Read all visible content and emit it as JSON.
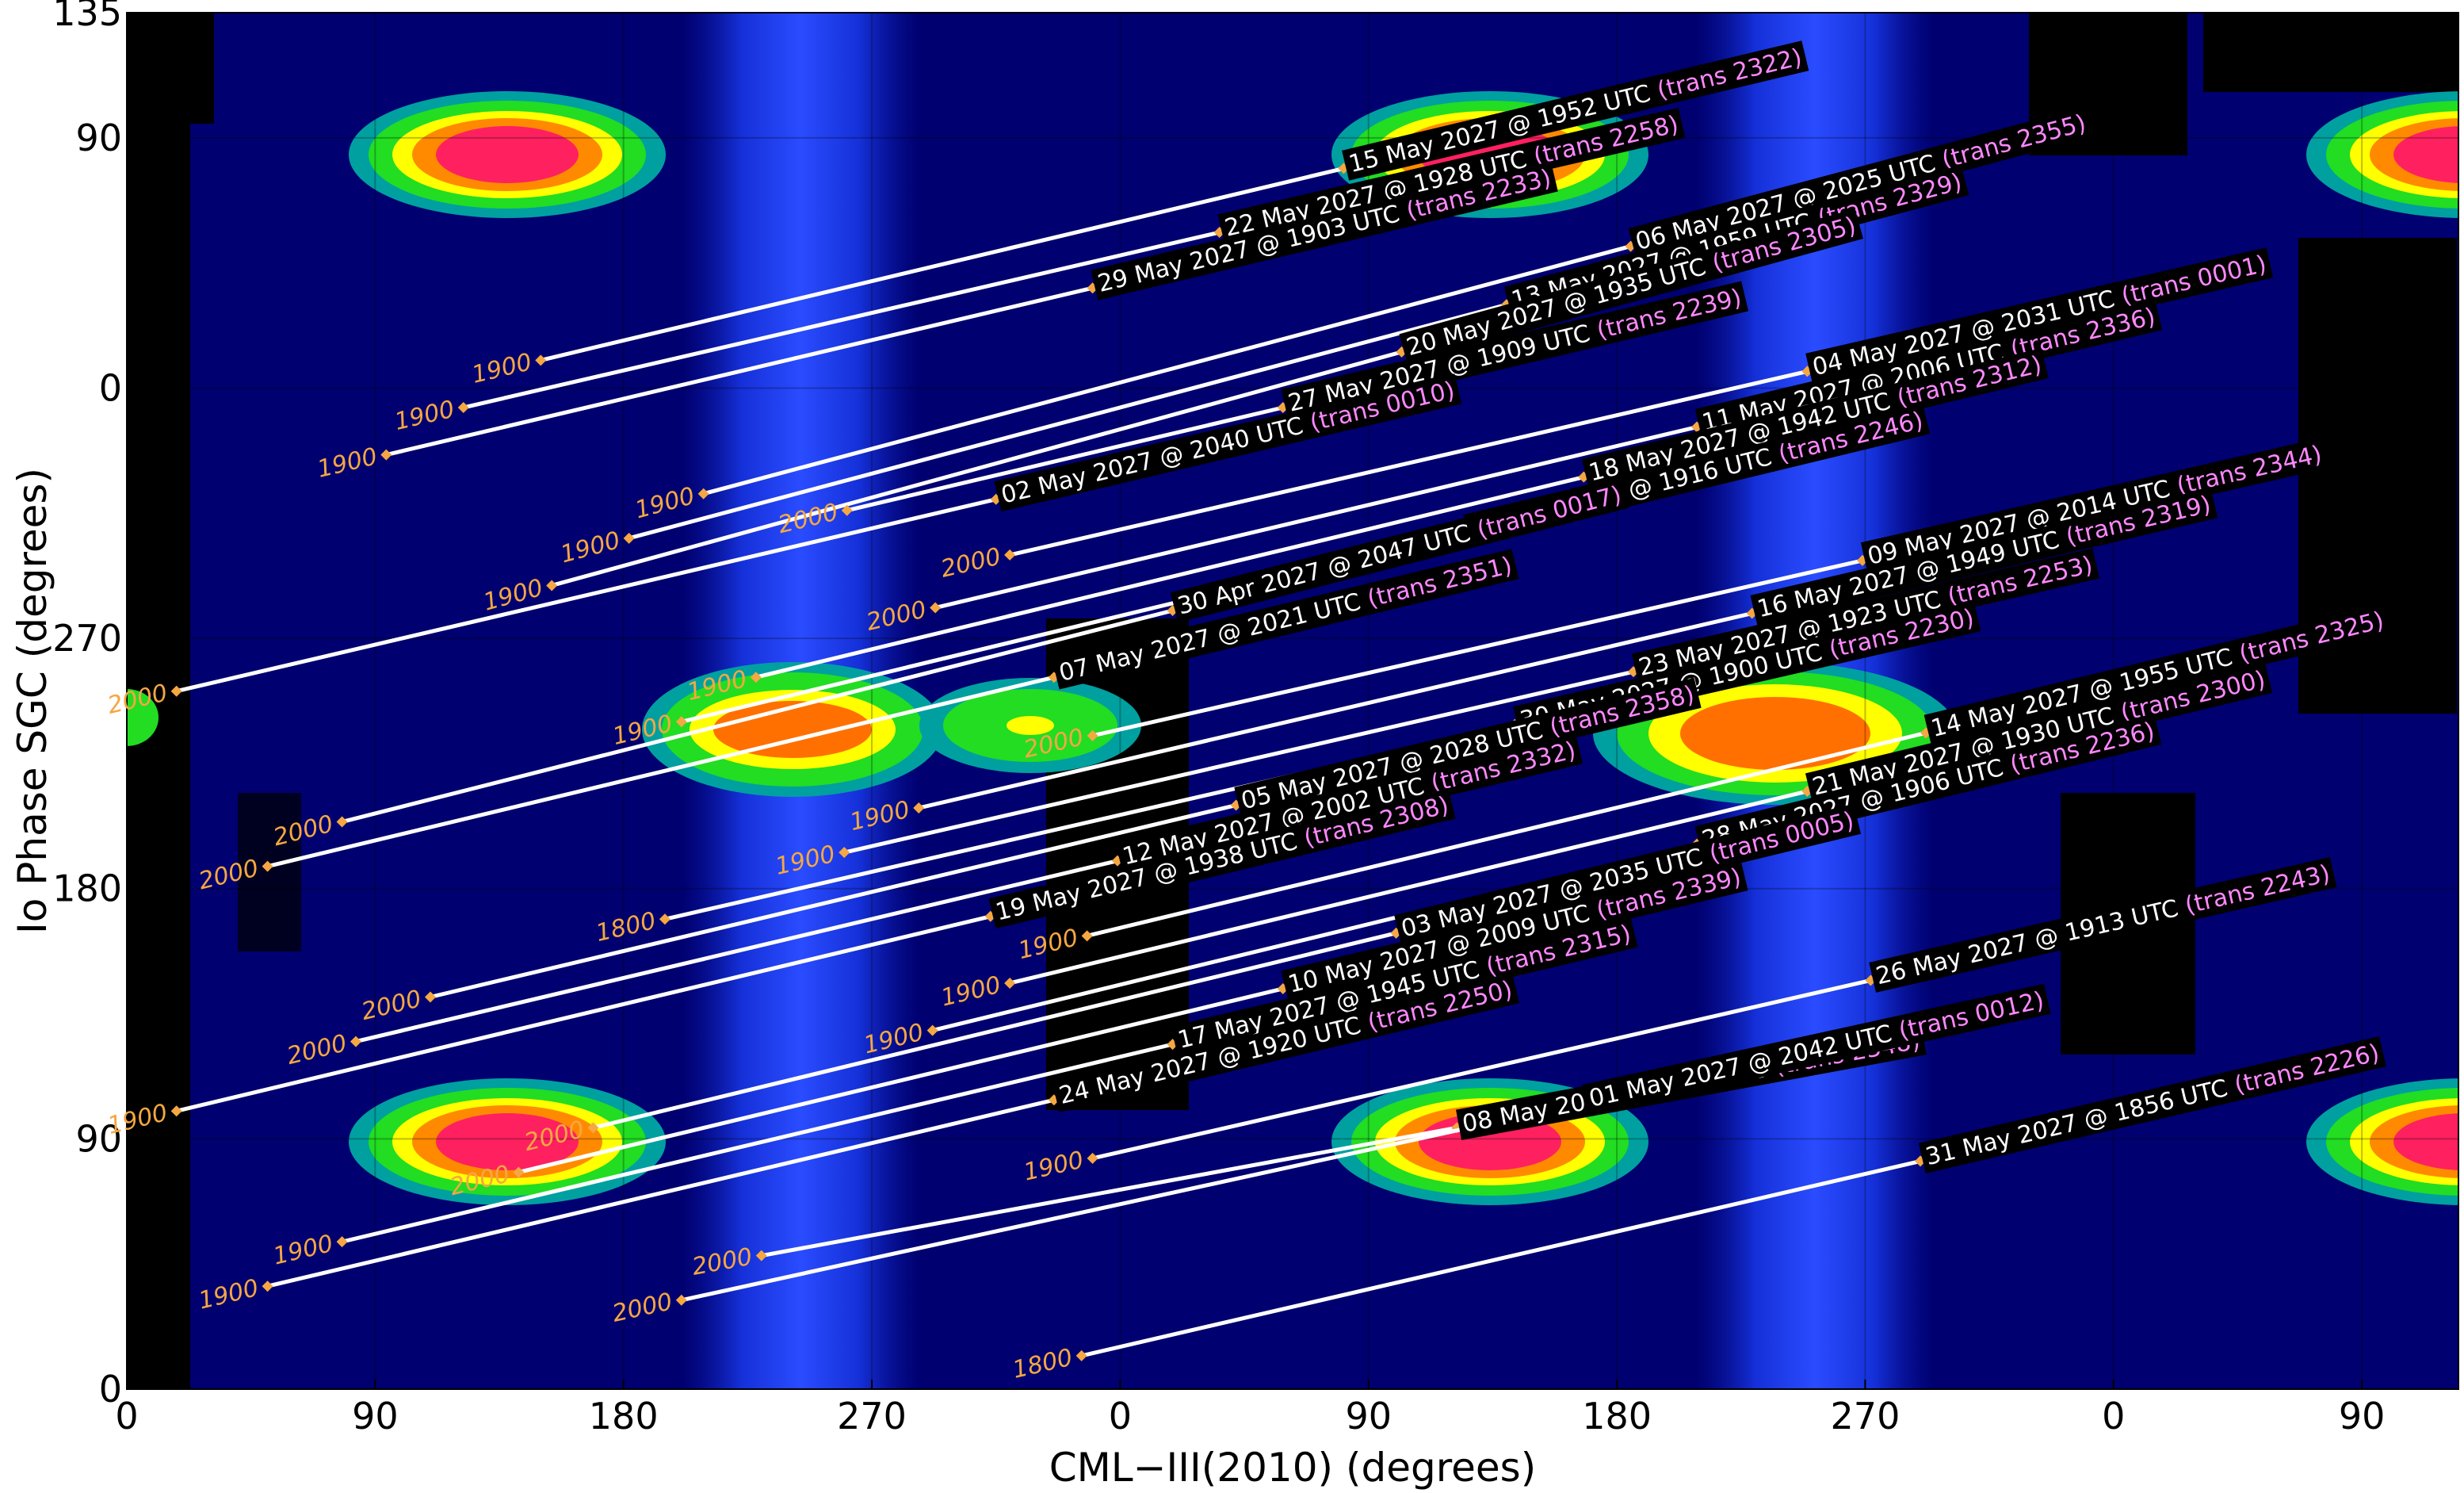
{
  "chart_data": {
    "type": "line",
    "x_label": "CML−III(2010) (degrees)",
    "y_label": "Io Phase SGC (degrees)",
    "xlim": [
      0,
      845
    ],
    "ylim": [
      0,
      495
    ],
    "xticks": [
      0,
      90,
      180,
      270,
      {
        "value": 360,
        "label": "0"
      },
      {
        "value": 450,
        "label": "90"
      },
      {
        "value": 540,
        "label": "180"
      },
      {
        "value": 630,
        "label": "270"
      },
      {
        "value": 720,
        "label": "0"
      },
      {
        "value": 810,
        "label": "90"
      }
    ],
    "yticks": [
      0,
      90,
      180,
      270,
      {
        "value": 360,
        "label": "0"
      },
      {
        "value": 450,
        "label": "90"
      },
      {
        "value": 495,
        "label": "135"
      }
    ],
    "grid": true,
    "line_color": "#ffffff",
    "start_color": "#f5a742",
    "trans_color": "#ff88ff",
    "series": [
      {
        "name": "15 May 2027 @ 1952 UTC",
        "trans": "(trans 2322)",
        "start_label": "1900",
        "x": [
          150,
          441
        ],
        "y": [
          370,
          439
        ]
      },
      {
        "name": "22 May 2027 @ 1928 UTC",
        "trans": "(trans 2258)",
        "start_label": "1900",
        "x": [
          122,
          396
        ],
        "y": [
          353,
          416
        ]
      },
      {
        "name": "29 May 2027 @ 1903 UTC",
        "trans": "(trans 2233)",
        "start_label": "1900",
        "x": [
          94,
          350
        ],
        "y": [
          336,
          396
        ]
      },
      {
        "name": "06 May 2027 @ 2025 UTC",
        "trans": "(trans 2355)",
        "start_label": "1900",
        "x": [
          209,
          545
        ],
        "y": [
          322,
          411
        ]
      },
      {
        "name": "13 May 2027 @ 1959 UTC",
        "trans": "(trans 2329)",
        "start_label": "1900",
        "x": [
          182,
          500
        ],
        "y": [
          306,
          390
        ]
      },
      {
        "name": "20 May 2027 @ 1935 UTC",
        "trans": "(trans 2305)",
        "start_label": "1900",
        "x": [
          154,
          462
        ],
        "y": [
          289,
          373
        ]
      },
      {
        "name": "27 May 2027 @ 1909 UTC",
        "trans": "(trans 2239)",
        "start_label": "2000",
        "x": [
          261,
          419
        ],
        "y": [
          316,
          353
        ]
      },
      {
        "name": "02 May 2027 @ 2040 UTC",
        "trans": "(trans 0010)",
        "start_label": "2000",
        "x": [
          18,
          315
        ],
        "y": [
          251,
          320
        ]
      },
      {
        "name": "04 May 2027 @ 2031 UTC",
        "trans": "(trans 0001)",
        "start_label": "2000",
        "x": [
          320,
          609
        ],
        "y": [
          300,
          366
        ]
      },
      {
        "name": "11 May 2027 @ 2006 UTC",
        "trans": "(trans 2336)",
        "start_label": "2000",
        "x": [
          293,
          569
        ],
        "y": [
          281,
          346
        ]
      },
      {
        "name": "18 May 2027 @ 1942 UTC",
        "trans": "(trans 2312)",
        "start_label": "1900",
        "x": [
          228,
          528
        ],
        "y": [
          256,
          328
        ]
      },
      {
        "name": "25 May 2027 @ 1916 UTC",
        "trans": "(trans 2246)",
        "start_label": "1900",
        "x": [
          201,
          485
        ],
        "y": [
          240,
          308
        ]
      },
      {
        "name": "30 Apr 2027 @ 2047 UTC",
        "trans": "(trans 0017)",
        "start_label": "2000",
        "x": [
          78,
          379
        ],
        "y": [
          204,
          280
        ]
      },
      {
        "name": "07 May 2027 @ 2021 UTC",
        "trans": "(trans 2351)",
        "start_label": "2000",
        "x": [
          51,
          336
        ],
        "y": [
          188,
          256
        ]
      },
      {
        "name": "09 May 2027 @ 2014 UTC",
        "trans": "(trans 2344)",
        "start_label": "2000",
        "x": [
          350,
          629
        ],
        "y": [
          235,
          298
        ]
      },
      {
        "name": "16 May 2027 @ 1949 UTC",
        "trans": "(trans 2319)",
        "start_label": "1900",
        "x": [
          287,
          589
        ],
        "y": [
          209,
          279
        ]
      },
      {
        "name": "23 May 2027 @ 1923 UTC",
        "trans": "(trans 2253)",
        "start_label": "1900",
        "x": [
          260,
          546
        ],
        "y": [
          193,
          258
        ]
      },
      {
        "name": "30 May 2027 @ 1900 UTC",
        "trans": "(trans 2230)",
        "start_label": "1800",
        "x": [
          195,
          503
        ],
        "y": [
          169,
          239
        ]
      },
      {
        "name": "05 May 2027 @ 2028 UTC",
        "trans": "(trans 2358)",
        "start_label": "2000",
        "x": [
          110,
          402
        ],
        "y": [
          141,
          210
        ]
      },
      {
        "name": "12 May 2027 @ 2002 UTC",
        "trans": "(trans 2332)",
        "start_label": "2000",
        "x": [
          83,
          359
        ],
        "y": [
          125,
          190
        ]
      },
      {
        "name": "19 May 2027 @ 1938 UTC",
        "trans": "(trans 2308)",
        "start_label": "1900",
        "x": [
          18,
          313
        ],
        "y": [
          100,
          170
        ]
      },
      {
        "name": "14 May 2027 @ 1955 UTC",
        "trans": "(trans 2325)",
        "start_label": "1900",
        "x": [
          348,
          652
        ],
        "y": [
          163,
          236
        ]
      },
      {
        "name": "21 May 2027 @ 1930 UTC",
        "trans": "(trans 2300)",
        "start_label": "1900",
        "x": [
          320,
          609
        ],
        "y": [
          146,
          215
        ]
      },
      {
        "name": "28 May 2027 @ 1906 UTC",
        "trans": "(trans 2236)",
        "start_label": "1900",
        "x": [
          292,
          569
        ],
        "y": [
          129,
          196
        ]
      },
      {
        "name": "03 May 2027 @ 2035 UTC",
        "trans": "(trans 0005)",
        "start_label": "2000",
        "x": [
          169,
          460
        ],
        "y": [
          94,
          164
        ]
      },
      {
        "name": "10 May 2027 @ 2009 UTC",
        "trans": "(trans 2339)",
        "start_label": "2000",
        "x": [
          142,
          419
        ],
        "y": [
          78,
          144
        ]
      },
      {
        "name": "17 May 2027 @ 1945 UTC",
        "trans": "(trans 2315)",
        "start_label": "1900",
        "x": [
          78,
          379
        ],
        "y": [
          53,
          124
        ]
      },
      {
        "name": "24 May 2027 @ 1920 UTC",
        "trans": "(trans 2250)",
        "start_label": "1900",
        "x": [
          51,
          336
        ],
        "y": [
          37,
          104
        ]
      },
      {
        "name": "26 May 2027 @ 1913 UTC",
        "trans": "(trans 2243)",
        "start_label": "1900",
        "x": [
          350,
          632
        ],
        "y": [
          83,
          147
        ]
      },
      {
        "name": "08 May 2027 @ 2018 UTC",
        "trans": "(trans 2348)",
        "start_label": "2000",
        "x": [
          230,
          482
        ],
        "y": [
          48,
          94
        ]
      },
      {
        "name": "01 May 2027 @ 2042 UTC",
        "trans": "(trans 0012)",
        "start_label": "2000",
        "x": [
          201,
          528
        ],
        "y": [
          32,
          103
        ]
      },
      {
        "name": "31 May 2027 @ 1856 UTC",
        "trans": "(trans 2226)",
        "start_label": "1800",
        "x": [
          346,
          650
        ],
        "y": [
          12,
          82
        ]
      }
    ]
  }
}
